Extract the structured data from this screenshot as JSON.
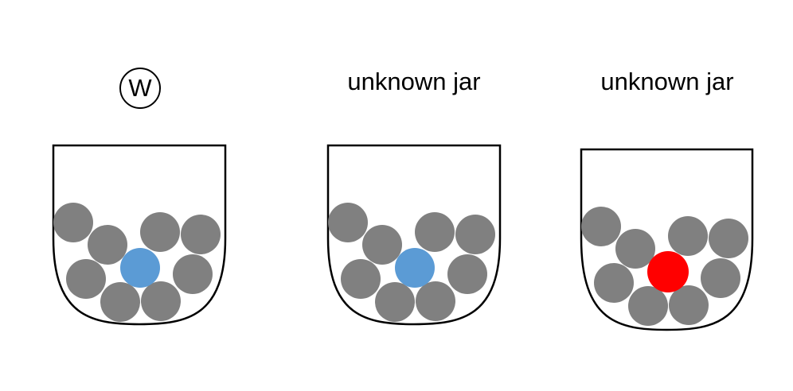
{
  "colors": {
    "outline": "#000000",
    "ball_gray": "#808080",
    "ball_blue": "#5b9bd5",
    "ball_red": "#ff0000"
  },
  "jars": [
    {
      "label": "W",
      "label_style": "circled",
      "highlight_ball": "blue"
    },
    {
      "label": "unknown jar",
      "label_style": "plain",
      "highlight_ball": "blue"
    },
    {
      "label": "unknown jar",
      "label_style": "plain",
      "highlight_ball": "red"
    }
  ]
}
